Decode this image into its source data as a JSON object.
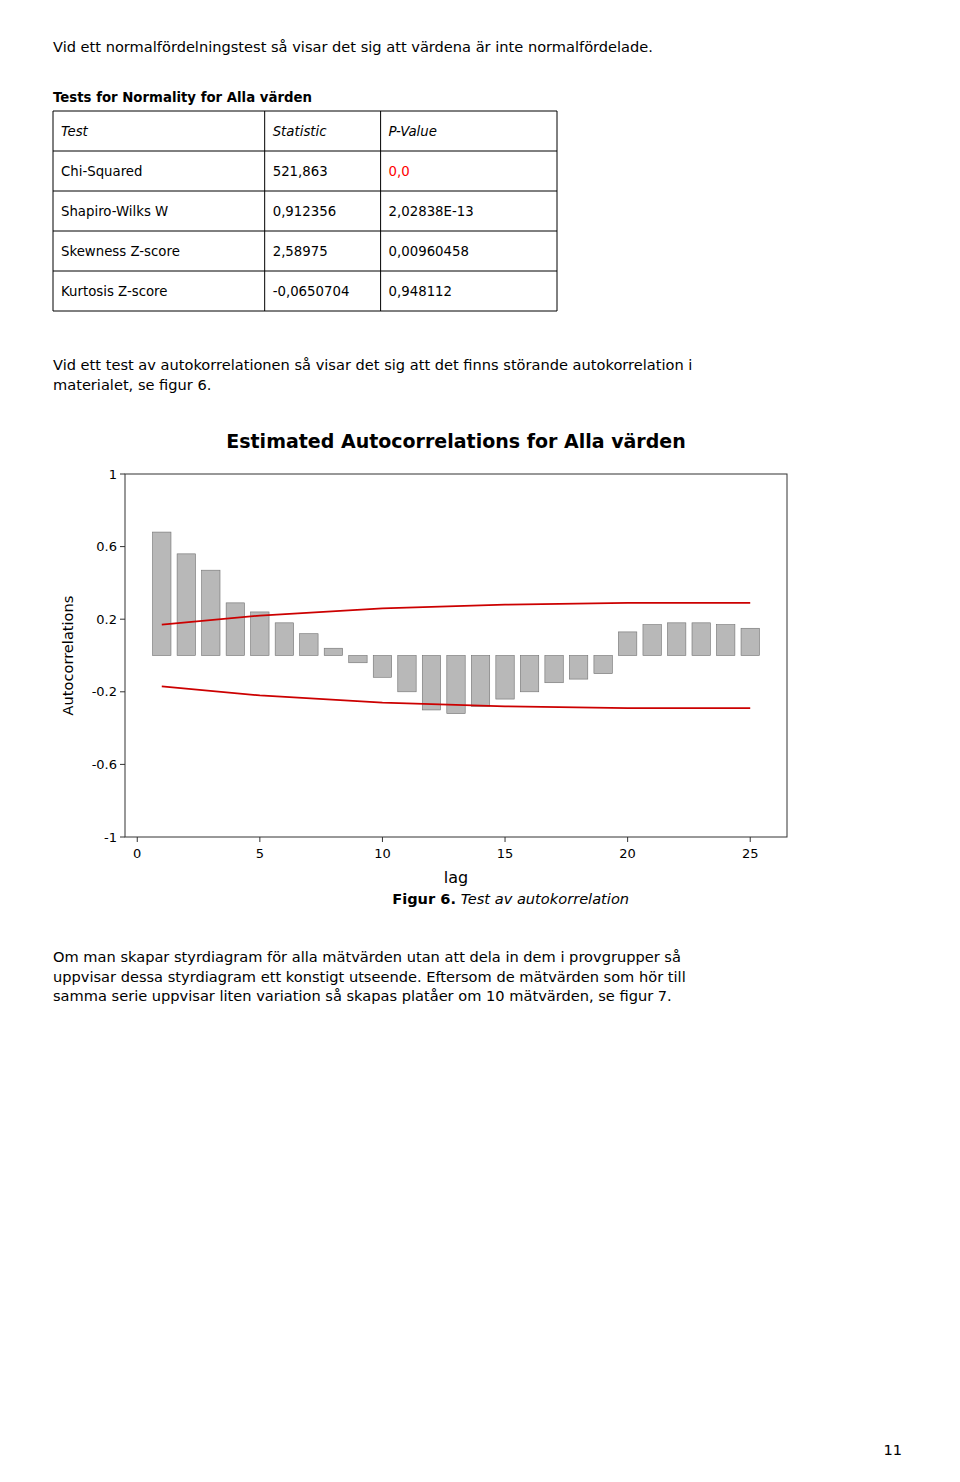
{
  "page": {
    "intro": "Vid ett normalfördelningstest så visar det sig att värdena är inte normalfördelade.",
    "table_title": "Tests for Normality for Alla värden",
    "table_headers": [
      "Test",
      "Statistic",
      "P-Value"
    ],
    "table_rows": [
      [
        "Chi-Squared",
        "521,863",
        "0,0"
      ],
      [
        "Shapiro-Wilks W",
        "0,912356",
        "2,02838E-13"
      ],
      [
        "Skewness Z-score",
        "2,58975",
        "0,00960458"
      ],
      [
        "Kurtosis Z-score",
        "-0,0650704",
        "0,948112"
      ]
    ],
    "table_highlight": [
      true,
      false,
      false,
      false
    ],
    "highlight_color": "red",
    "paragraph1": "Vid ett test av autokorrelationen så visar det sig att det finns störande autokorrelation i\nmaterialet, se figur 6.",
    "caption_bold": "Figur 6.",
    "caption_italic": " Test av autokorrelation",
    "paragraph2": "Om man skapar styrdiagram för alla mätvärden utan att dela in dem i provgrupper så\nuppvisar dessa styrdiagram ett konstigt utseende. Eftersom de mätvärden som hör till\nsamma serie uppvisar liten variation så skapas platåer om 10 mätvärden, se figur 7.",
    "page_number": "11"
  },
  "chart_data": {
    "type": "bar",
    "title": "Estimated Autocorrelations for Alla värden",
    "x_label": "lag",
    "y_label": "Autocorrelations",
    "series": [
      {
        "type": "bar",
        "x": [
          1,
          2,
          3,
          4,
          5,
          6,
          7,
          8,
          9,
          10,
          11,
          12,
          13,
          14,
          15,
          16,
          17,
          18,
          19,
          20,
          21,
          22,
          23,
          24,
          25
        ],
        "values": [
          0.68,
          0.56,
          0.47,
          0.29,
          0.24,
          0.18,
          0.12,
          0.04,
          -0.04,
          -0.12,
          -0.2,
          -0.3,
          -0.32,
          -0.28,
          -0.24,
          -0.2,
          -0.15,
          -0.13,
          -0.1,
          0.13,
          0.17,
          0.18,
          0.18,
          0.17,
          0.15
        ],
        "color": "#b8b8b8"
      },
      {
        "type": "line",
        "x": [
          1,
          5,
          10,
          15,
          20,
          25
        ],
        "values": [
          0.17,
          0.22,
          0.26,
          0.28,
          0.29,
          0.29
        ],
        "color": "#cc0000"
      },
      {
        "type": "line",
        "x": [
          1,
          5,
          10,
          15,
          20,
          25
        ],
        "values": [
          -0.17,
          -0.22,
          -0.26,
          -0.28,
          -0.29,
          -0.29
        ],
        "color": "#cc0000"
      }
    ],
    "xlim": [
      -0.5,
      26.5
    ],
    "ylim": [
      -1,
      1
    ],
    "xticks": [
      0,
      5,
      10,
      15,
      20,
      25
    ],
    "yticks": [
      1,
      0.6,
      0.2,
      -0.2,
      -0.6,
      -1
    ],
    "grid": false
  }
}
